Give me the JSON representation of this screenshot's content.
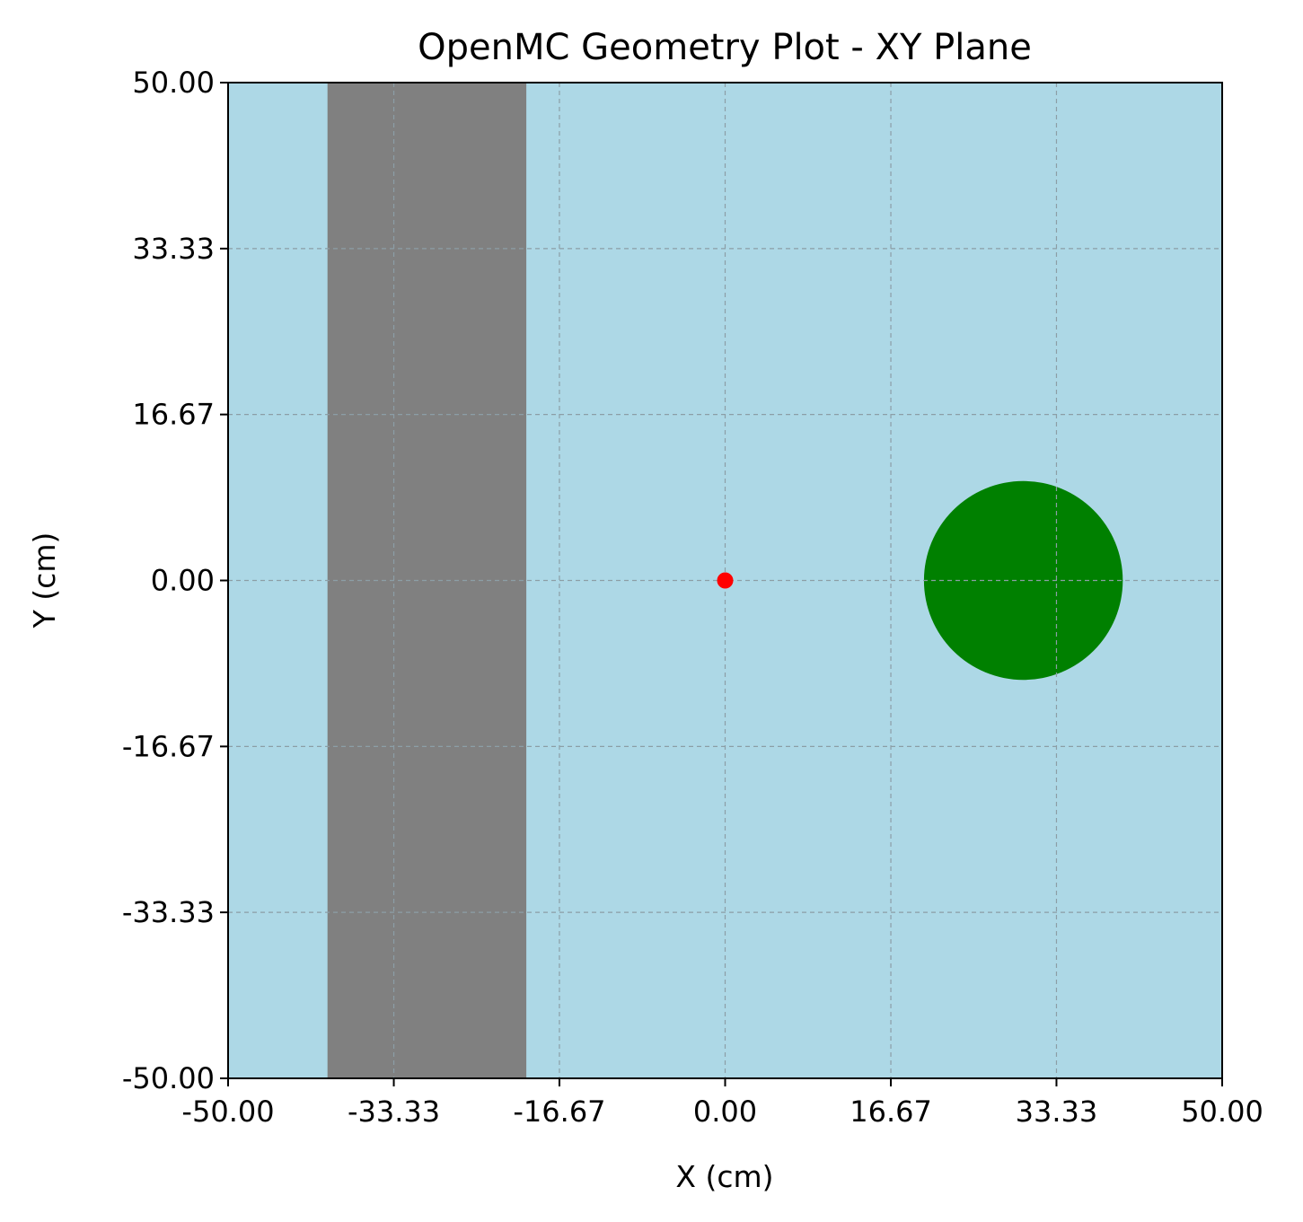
{
  "chart_data": {
    "type": "heatmap",
    "title": "OpenMC Geometry Plot - XY Plane",
    "xlabel": "X (cm)",
    "ylabel": "Y (cm)",
    "xlim": [
      -50,
      50
    ],
    "ylim": [
      -50,
      50
    ],
    "xticks": [
      "-50.00",
      "-33.33",
      "-16.67",
      "0.00",
      "16.67",
      "33.33",
      "50.00"
    ],
    "yticks": [
      "-50.00",
      "-33.33",
      "-16.67",
      "0.00",
      "16.67",
      "33.33",
      "50.00"
    ],
    "xtick_values": [
      -50,
      -33.33,
      -16.67,
      0,
      16.67,
      33.33,
      50
    ],
    "ytick_values": [
      -50,
      -33.33,
      -16.67,
      0,
      16.67,
      33.33,
      50
    ],
    "grid": true,
    "regions": [
      {
        "kind": "background",
        "color": "#add8e6"
      },
      {
        "kind": "slab",
        "x_min": -40,
        "x_max": -20,
        "color": "#808080"
      },
      {
        "kind": "circle",
        "cx": 30,
        "cy": 0,
        "r": 10,
        "color": "#008000"
      }
    ],
    "source_point": {
      "x": 0,
      "y": 0,
      "color": "#ff0000"
    }
  }
}
